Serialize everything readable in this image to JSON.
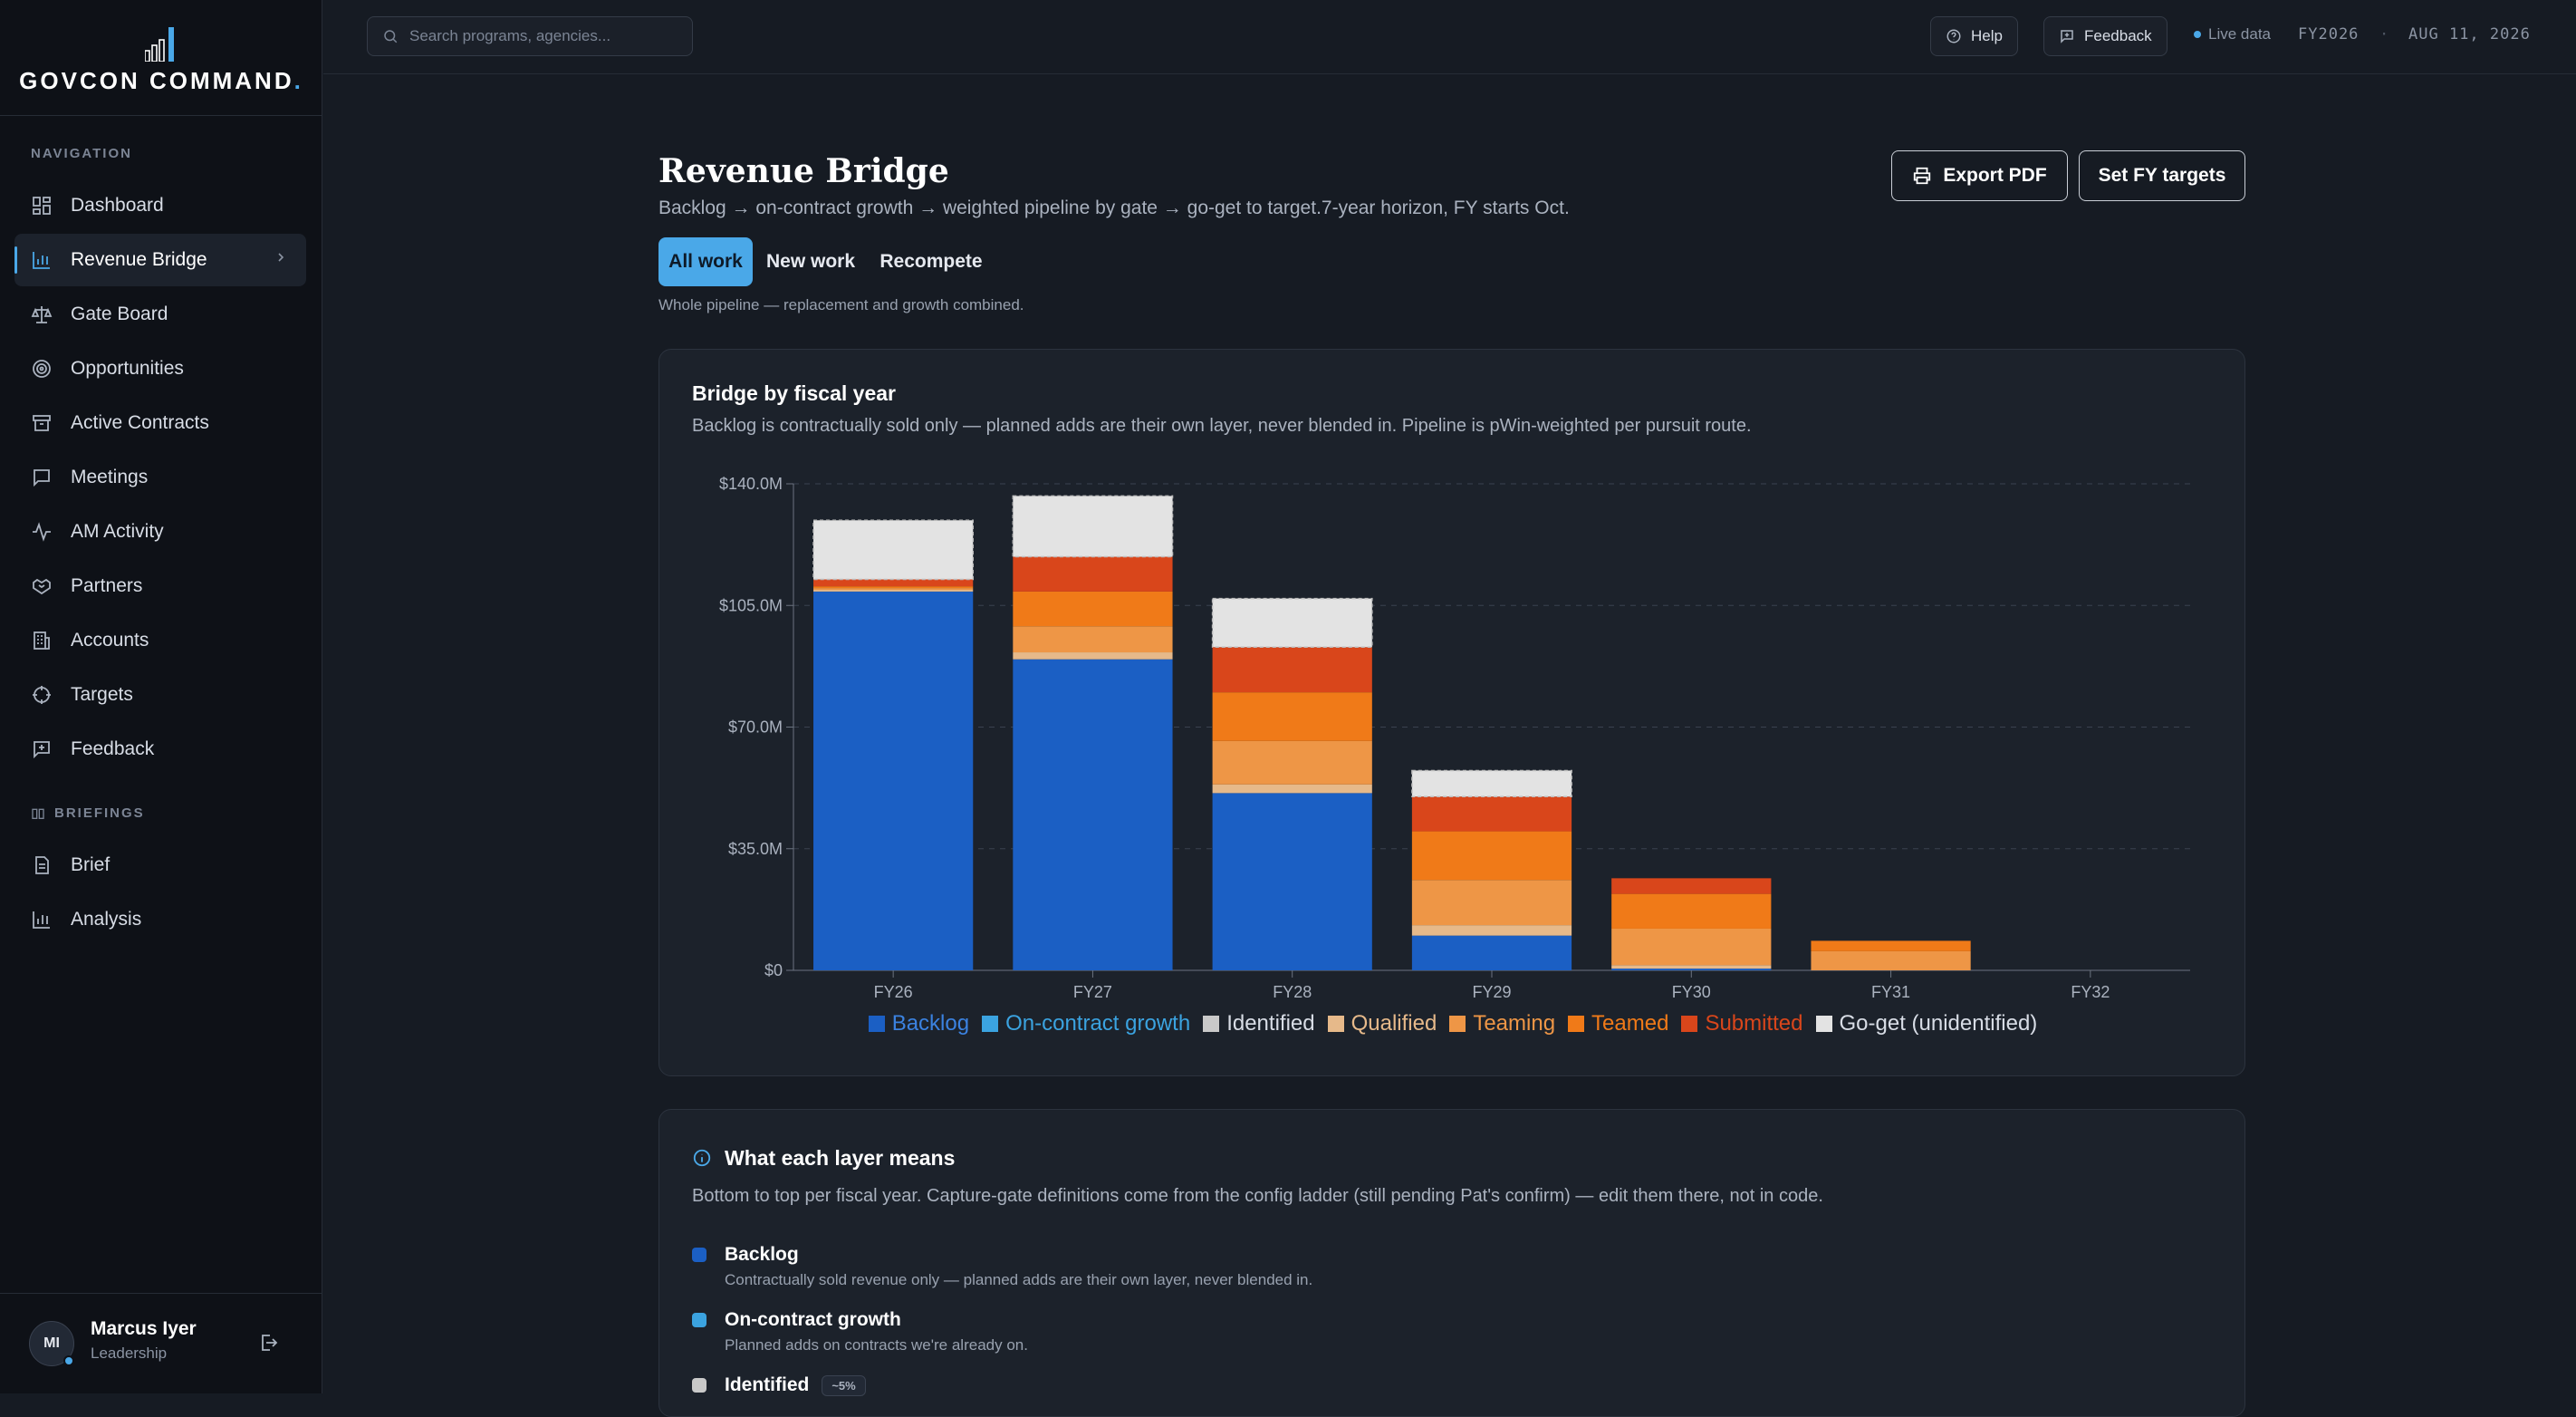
{
  "app": {
    "name": "GOVCON COMMAND",
    "dot": "."
  },
  "sidebar": {
    "nav_heading": "NAVIGATION",
    "items": [
      {
        "label": "Dashboard",
        "icon": "grid-icon"
      },
      {
        "label": "Revenue Bridge",
        "icon": "bar-chart-icon",
        "active": true
      },
      {
        "label": "Gate Board",
        "icon": "scale-icon"
      },
      {
        "label": "Opportunities",
        "icon": "target-icon"
      },
      {
        "label": "Active Contracts",
        "icon": "archive-icon"
      },
      {
        "label": "Meetings",
        "icon": "message-icon"
      },
      {
        "label": "AM Activity",
        "icon": "activity-icon"
      },
      {
        "label": "Partners",
        "icon": "handshake-icon"
      },
      {
        "label": "Accounts",
        "icon": "building-icon"
      },
      {
        "label": "Targets",
        "icon": "crosshair-icon"
      },
      {
        "label": "Feedback",
        "icon": "feedback-icon"
      }
    ],
    "briefings_heading": "BRIEFINGS",
    "briefings": [
      {
        "label": "Brief",
        "icon": "file-icon"
      },
      {
        "label": "Analysis",
        "icon": "bar-chart-icon"
      }
    ],
    "user": {
      "initials": "MI",
      "name": "Marcus Iyer",
      "role": "Leadership"
    }
  },
  "topbar": {
    "search_placeholder": "Search programs, agencies...",
    "help": "Help",
    "feedback": "Feedback",
    "live": "Live data",
    "fy": "FY2026",
    "separator": "·",
    "date": "AUG 11, 2026"
  },
  "page": {
    "title": "Revenue Bridge",
    "subtitle": "Backlog → on-contract growth → weighted pipeline by gate → go-get to target.7-year horizon, FY starts Oct.",
    "export_pdf": "Export PDF",
    "set_targets": "Set FY targets",
    "tabs": [
      "All work",
      "New work",
      "Recompete"
    ],
    "active_tab": 0,
    "tab_note": "Whole pipeline — replacement and growth combined."
  },
  "chart_card": {
    "title": "Bridge by fiscal year",
    "subtitle": "Backlog is contractually sold only — planned adds are their own layer, never blended in. Pipeline is pWin-weighted per pursuit route."
  },
  "chart_data": {
    "type": "bar",
    "stacked": true,
    "categories": [
      "FY26",
      "FY27",
      "FY28",
      "FY29",
      "FY30",
      "FY31",
      "FY32"
    ],
    "ylim": [
      0,
      140
    ],
    "yticks": [
      "$0",
      "$35.0M",
      "$70.0M",
      "$105.0M",
      "$140.0M"
    ],
    "grid": true,
    "legend_position": "bottom",
    "series": [
      {
        "name": "Backlog",
        "color": "#1b5fc4",
        "values": [
          109,
          89.5,
          51,
          10,
          0.5,
          0,
          0
        ]
      },
      {
        "name": "On-contract growth",
        "color": "#3ba3e0",
        "values": [
          0,
          0,
          0,
          0,
          0,
          0,
          0
        ]
      },
      {
        "name": "Identified",
        "color": "#c9c9c9",
        "values": [
          0,
          0,
          0,
          0,
          0,
          0,
          0
        ]
      },
      {
        "name": "Qualified",
        "color": "#e6b98a",
        "values": [
          0.5,
          2,
          2.5,
          3,
          1,
          0,
          0
        ]
      },
      {
        "name": "Teaming",
        "color": "#ee9646",
        "values": [
          0.5,
          7.5,
          12.5,
          13,
          10.5,
          5.5,
          0
        ]
      },
      {
        "name": "Teamed",
        "color": "#f07a18",
        "values": [
          0.5,
          10,
          14,
          14,
          10,
          3,
          0
        ]
      },
      {
        "name": "Submitted",
        "color": "#d9461b",
        "values": [
          2,
          10,
          13,
          10,
          4.5,
          0,
          0
        ]
      },
      {
        "name": "Go-get (unidentified)",
        "color": "#e3e3e3",
        "values": [
          17,
          17.5,
          14,
          7.5,
          0,
          0,
          0
        ]
      }
    ]
  },
  "layers_card": {
    "title": "What each layer means",
    "subtitle": "Bottom to top per fiscal year. Capture-gate definitions come from the config ladder (still pending Pat's confirm) — edit them there, not in code.",
    "items": [
      {
        "name": "Backlog",
        "desc": "Contractually sold revenue only — planned adds are their own layer, never blended in.",
        "color": "#1b5fc4",
        "badge": ""
      },
      {
        "name": "On-contract growth",
        "desc": "Planned adds on contracts we're already on.",
        "color": "#3ba3e0",
        "badge": ""
      },
      {
        "name": "Identified",
        "desc": "",
        "color": "#c9c9c9",
        "badge": "~5%"
      }
    ]
  }
}
